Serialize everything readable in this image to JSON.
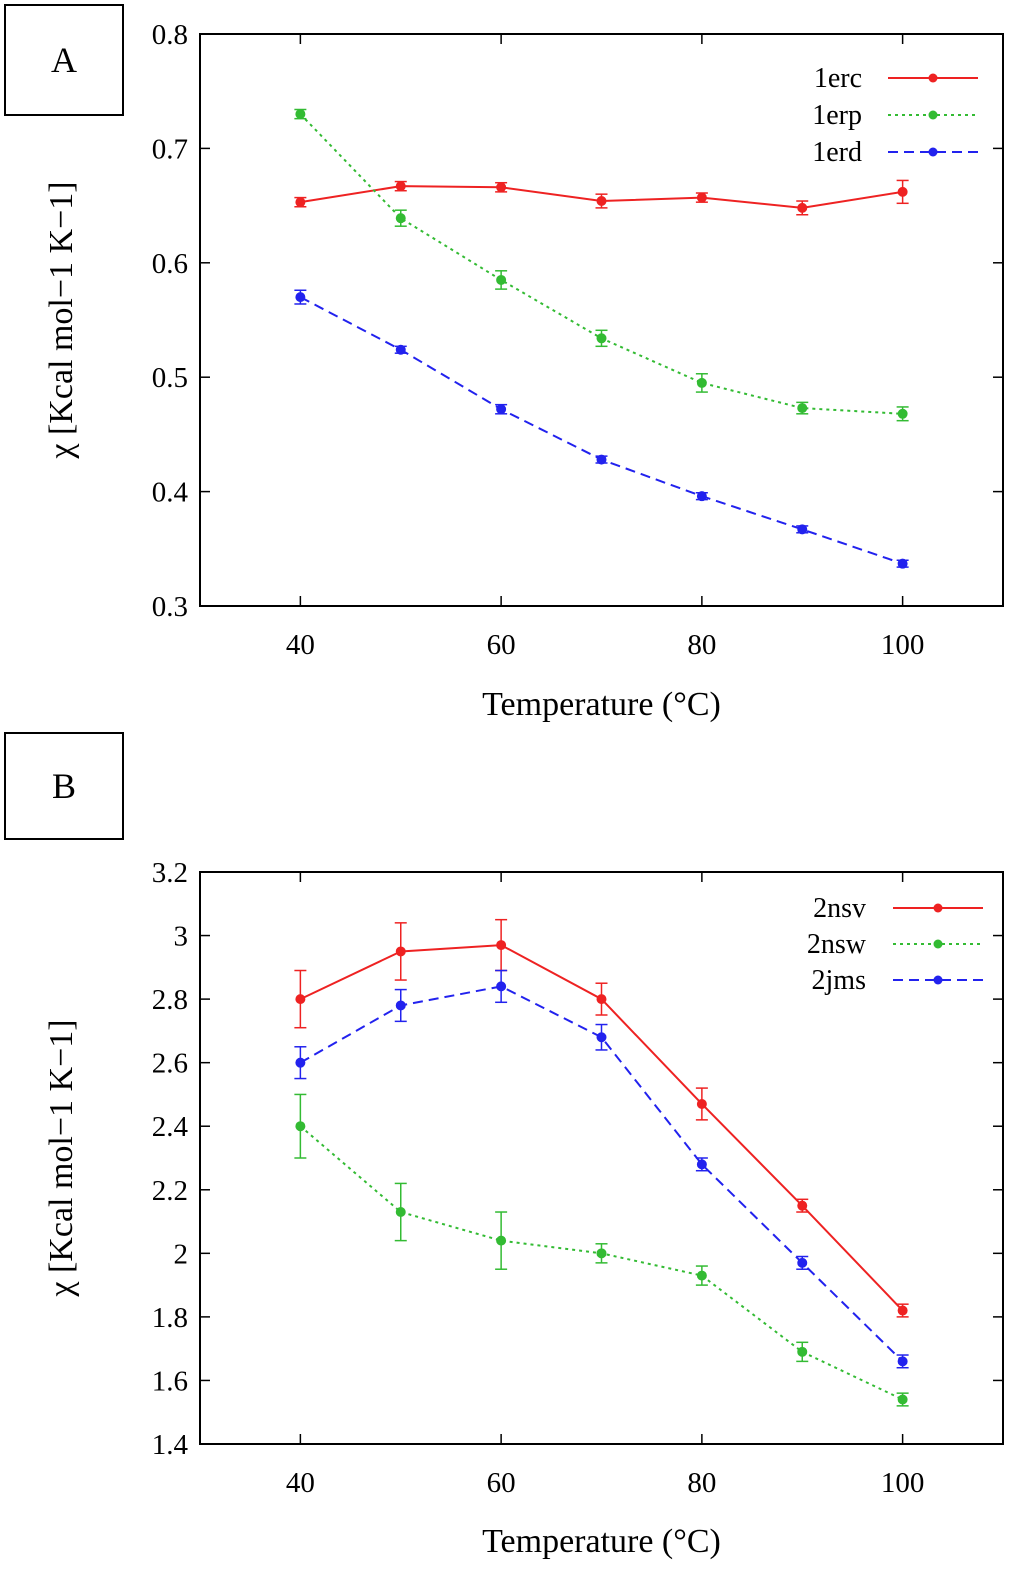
{
  "panels": [
    {
      "label": "A",
      "chart_data": {
        "type": "line",
        "title": "",
        "xlabel": "Temperature (°C)",
        "ylabel": "χ [Kcal mol−1 K−1]",
        "xlim": [
          30,
          110
        ],
        "ylim": [
          0.3,
          0.8
        ],
        "xticks": [
          40,
          60,
          80,
          100
        ],
        "yticks": [
          0.3,
          0.4,
          0.5,
          0.6,
          0.7,
          0.8
        ],
        "ytick_labels": [
          "0.3",
          "0.4",
          "0.5",
          "0.6",
          "0.7",
          "0.8"
        ],
        "legend_position": "top-right",
        "x": [
          40,
          50,
          60,
          70,
          80,
          90,
          100
        ],
        "series": [
          {
            "name": "1erc",
            "color": "#ee2222",
            "style": "solid",
            "values": [
              0.653,
              0.667,
              0.666,
              0.654,
              0.657,
              0.648,
              0.662
            ],
            "errors": [
              0.004,
              0.004,
              0.004,
              0.006,
              0.004,
              0.006,
              0.01
            ]
          },
          {
            "name": "1erp",
            "color": "#33bb33",
            "style": "dotted",
            "values": [
              0.73,
              0.639,
              0.585,
              0.534,
              0.495,
              0.473,
              0.468
            ],
            "errors": [
              0.004,
              0.007,
              0.008,
              0.007,
              0.008,
              0.005,
              0.006
            ]
          },
          {
            "name": "1erd",
            "color": "#2222ee",
            "style": "dashed",
            "values": [
              0.57,
              0.524,
              0.472,
              0.428,
              0.396,
              0.367,
              0.337
            ],
            "errors": [
              0.006,
              0.003,
              0.004,
              0.003,
              0.003,
              0.003,
              0.003
            ]
          }
        ]
      }
    },
    {
      "label": "B",
      "chart_data": {
        "type": "line",
        "title": "",
        "xlabel": "Temperature (°C)",
        "ylabel": "χ [Kcal mol−1 K−1]",
        "xlim": [
          30,
          110
        ],
        "ylim": [
          1.4,
          3.2
        ],
        "xticks": [
          40,
          60,
          80,
          100
        ],
        "yticks": [
          1.4,
          1.6,
          1.8,
          2.0,
          2.2,
          2.4,
          2.6,
          2.8,
          3.0,
          3.2
        ],
        "ytick_labels": [
          "1.4",
          "1.6",
          "1.8",
          "2",
          "2.2",
          "2.4",
          "2.6",
          "2.8",
          "3",
          "3.2"
        ],
        "legend_position": "top-right",
        "x": [
          40,
          50,
          60,
          70,
          80,
          90,
          100
        ],
        "series": [
          {
            "name": "2nsv",
            "color": "#ee2222",
            "style": "solid",
            "values": [
              2.8,
              2.95,
              2.97,
              2.8,
              2.47,
              2.15,
              1.82
            ],
            "errors": [
              0.09,
              0.09,
              0.08,
              0.05,
              0.05,
              0.02,
              0.02
            ]
          },
          {
            "name": "2nsw",
            "color": "#33bb33",
            "style": "dotted",
            "values": [
              2.4,
              2.13,
              2.04,
              2.0,
              1.93,
              1.69,
              1.54
            ],
            "errors": [
              0.1,
              0.09,
              0.09,
              0.03,
              0.03,
              0.03,
              0.02
            ]
          },
          {
            "name": "2jms",
            "color": "#2222ee",
            "style": "dashed",
            "values": [
              2.6,
              2.78,
              2.84,
              2.68,
              2.28,
              1.97,
              1.66
            ],
            "errors": [
              0.05,
              0.05,
              0.05,
              0.04,
              0.02,
              0.02,
              0.02
            ]
          }
        ]
      }
    }
  ]
}
